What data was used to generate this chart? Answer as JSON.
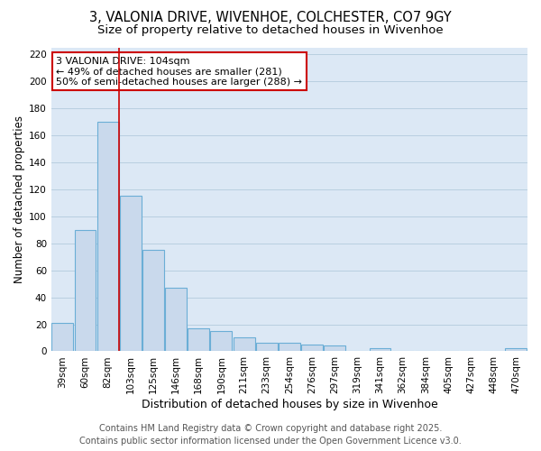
{
  "title1": "3, VALONIA DRIVE, WIVENHOE, COLCHESTER, CO7 9GY",
  "title2": "Size of property relative to detached houses in Wivenhoe",
  "xlabel": "Distribution of detached houses by size in Wivenhoe",
  "ylabel": "Number of detached properties",
  "categories": [
    "39sqm",
    "60sqm",
    "82sqm",
    "103sqm",
    "125sqm",
    "146sqm",
    "168sqm",
    "190sqm",
    "211sqm",
    "233sqm",
    "254sqm",
    "276sqm",
    "297sqm",
    "319sqm",
    "341sqm",
    "362sqm",
    "384sqm",
    "405sqm",
    "427sqm",
    "448sqm",
    "470sqm"
  ],
  "values": [
    21,
    90,
    170,
    115,
    75,
    47,
    17,
    15,
    10,
    6,
    6,
    5,
    4,
    0,
    2,
    0,
    0,
    0,
    0,
    0,
    2
  ],
  "bar_color": "#c9d9ec",
  "bar_edge_color": "#6baed6",
  "grid_color": "#b8cfe0",
  "plot_bg_color": "#dce8f5",
  "fig_bg_color": "#ffffff",
  "vline_color": "#cc0000",
  "vline_x_index": 3,
  "annotation_line1": "3 VALONIA DRIVE: 104sqm",
  "annotation_line2": "← 49% of detached houses are smaller (281)",
  "annotation_line3": "50% of semi-detached houses are larger (288) →",
  "annotation_box_color": "#cc0000",
  "footer1": "Contains HM Land Registry data © Crown copyright and database right 2025.",
  "footer2": "Contains public sector information licensed under the Open Government Licence v3.0.",
  "ylim": [
    0,
    225
  ],
  "yticks": [
    0,
    20,
    40,
    60,
    80,
    100,
    120,
    140,
    160,
    180,
    200,
    220
  ],
  "title1_fontsize": 10.5,
  "title2_fontsize": 9.5,
  "xlabel_fontsize": 9,
  "ylabel_fontsize": 8.5,
  "tick_fontsize": 7.5,
  "annotation_fontsize": 8,
  "footer_fontsize": 7
}
